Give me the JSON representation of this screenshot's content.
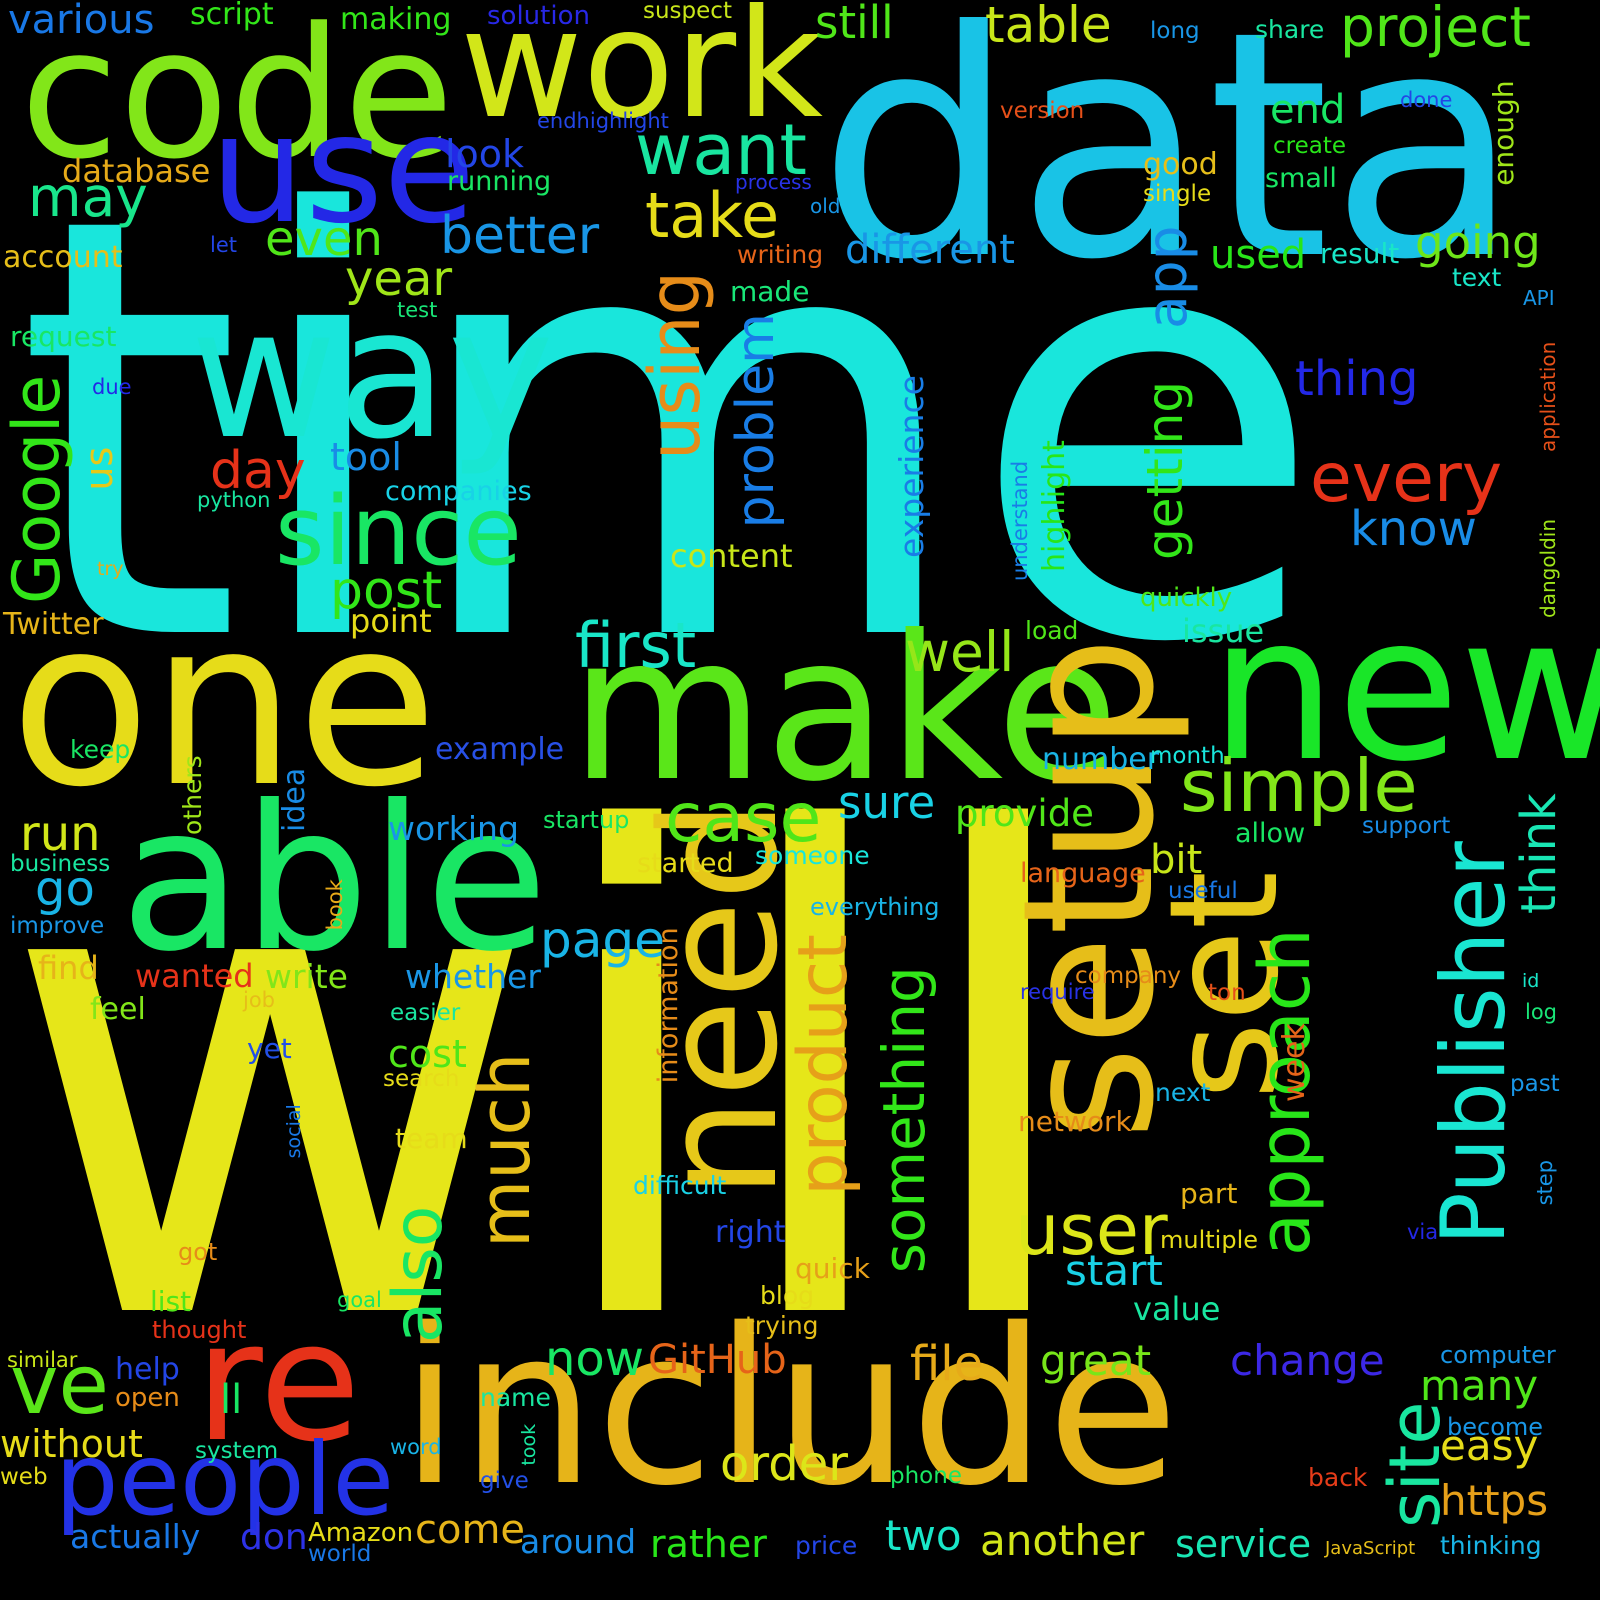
{
  "cloud": {
    "background": "#000000",
    "words": [
      {
        "text": "time",
        "color": "#19e6dc"
      },
      {
        "text": "will",
        "color": "#e6e619"
      },
      {
        "text": "data",
        "color": "#19c3e6"
      },
      {
        "text": "one",
        "color": "#e6dc19"
      },
      {
        "text": "code",
        "color": "#82e619"
      },
      {
        "text": "work",
        "color": "#d2e619"
      },
      {
        "text": "use",
        "color": "#2328e6"
      },
      {
        "text": "way",
        "color": "#19e6d2"
      },
      {
        "text": "make",
        "color": "#5ae619"
      },
      {
        "text": "new",
        "color": "#19e628"
      },
      {
        "text": "able",
        "color": "#19e664"
      },
      {
        "text": "include",
        "color": "#e6b419"
      },
      {
        "text": "need",
        "color": "#e6c819"
      },
      {
        "text": "set",
        "color": "#e6c819"
      },
      {
        "text": "setup",
        "color": "#e6be19"
      },
      {
        "text": "re",
        "color": "#e63219"
      },
      {
        "text": "people",
        "color": "#2332e6"
      },
      {
        "text": "since",
        "color": "#19e664"
      },
      {
        "text": "want",
        "color": "#19e6a0"
      },
      {
        "text": "take",
        "color": "#e6dc19"
      },
      {
        "text": "using",
        "color": "#e68c19"
      },
      {
        "text": "Publisher",
        "color": "#19e6d2"
      },
      {
        "text": "approach",
        "color": "#28e619"
      },
      {
        "text": "every",
        "color": "#e63219"
      },
      {
        "text": "much",
        "color": "#e6be19"
      },
      {
        "text": "product",
        "color": "#e6a019"
      },
      {
        "text": "something",
        "color": "#32e619"
      },
      {
        "text": "also",
        "color": "#19e664"
      },
      {
        "text": "user",
        "color": "#dce619"
      },
      {
        "text": "ve",
        "color": "#5ae619"
      },
      {
        "text": "site",
        "color": "#19e6a0"
      },
      {
        "text": "simple",
        "color": "#82e619"
      },
      {
        "text": "case",
        "color": "#50e619"
      },
      {
        "text": "first",
        "color": "#19e6c8"
      },
      {
        "text": "well",
        "color": "#96e619"
      },
      {
        "text": "problem",
        "color": "#197de6"
      },
      {
        "text": "app",
        "color": "#198ce6"
      },
      {
        "text": "getting",
        "color": "#32e619"
      },
      {
        "text": "thing",
        "color": "#2328e6"
      },
      {
        "text": "know",
        "color": "#198ce6"
      },
      {
        "text": "better",
        "color": "#1996e6"
      },
      {
        "text": "different",
        "color": "#1996e6"
      },
      {
        "text": "going",
        "color": "#6ee619"
      },
      {
        "text": "table",
        "color": "#c8e619"
      },
      {
        "text": "project",
        "color": "#50e619"
      },
      {
        "text": "still",
        "color": "#50e619"
      },
      {
        "text": "various",
        "color": "#1978e6"
      },
      {
        "text": "may",
        "color": "#19e68c"
      },
      {
        "text": "even",
        "color": "#50e619"
      },
      {
        "text": "year",
        "color": "#a0e619"
      },
      {
        "text": "Google",
        "color": "#32e619"
      },
      {
        "text": "day",
        "color": "#e63219"
      },
      {
        "text": "post",
        "color": "#32e619"
      },
      {
        "text": "tool",
        "color": "#198ce6"
      },
      {
        "text": "run",
        "color": "#d2e619"
      },
      {
        "text": "go",
        "color": "#19b4e6"
      },
      {
        "text": "page",
        "color": "#19b4e6"
      },
      {
        "text": "sure",
        "color": "#19d2e6"
      },
      {
        "text": "provide",
        "color": "#50e619"
      },
      {
        "text": "think",
        "color": "#19e6b4"
      },
      {
        "text": "bit",
        "color": "#c8e619"
      },
      {
        "text": "start",
        "color": "#19d2e6"
      },
      {
        "text": "order",
        "color": "#dce619"
      },
      {
        "text": "now",
        "color": "#19e664"
      },
      {
        "text": "GitHub",
        "color": "#e66419"
      },
      {
        "text": "file",
        "color": "#e6aa19"
      },
      {
        "text": "great",
        "color": "#78e619"
      },
      {
        "text": "change",
        "color": "#3c28e6"
      },
      {
        "text": "many",
        "color": "#50e619"
      },
      {
        "text": "easy",
        "color": "#e6dc19"
      },
      {
        "text": "https",
        "color": "#e6a019"
      },
      {
        "text": "two",
        "color": "#19e6c8"
      },
      {
        "text": "another",
        "color": "#d2e619"
      },
      {
        "text": "service",
        "color": "#19e6b4"
      },
      {
        "text": "come",
        "color": "#e6b419"
      },
      {
        "text": "rather",
        "color": "#28e619"
      },
      {
        "text": "around",
        "color": "#198ce6"
      },
      {
        "text": "don",
        "color": "#2d32e6"
      },
      {
        "text": "without",
        "color": "#e6dc19"
      },
      {
        "text": "ll",
        "color": "#19e664"
      },
      {
        "text": "actually",
        "color": "#1978e6"
      },
      {
        "text": "us",
        "color": "#e6c819"
      },
      {
        "text": "end",
        "color": "#19e664"
      },
      {
        "text": "used",
        "color": "#28e619"
      },
      {
        "text": "look",
        "color": "#2346e6"
      },
      {
        "text": "write",
        "color": "#82e619"
      },
      {
        "text": "wanted",
        "color": "#e63219"
      },
      {
        "text": "whether",
        "color": "#1996e6"
      },
      {
        "text": "working",
        "color": "#1996e6"
      },
      {
        "text": "cost",
        "color": "#50e619"
      },
      {
        "text": "experience",
        "color": "#197de6"
      },
      {
        "text": "highlight",
        "color": "#28e619"
      },
      {
        "text": "companies",
        "color": "#19d2e6"
      },
      {
        "text": "content",
        "color": "#c8e619"
      },
      {
        "text": "point",
        "color": "#e6dc19"
      },
      {
        "text": "issue",
        "color": "#19e6a0"
      },
      {
        "text": "quickly",
        "color": "#50e619"
      },
      {
        "text": "load",
        "color": "#50e619"
      },
      {
        "text": "example",
        "color": "#2850e6"
      },
      {
        "text": "number",
        "color": "#19b4e6"
      },
      {
        "text": "month",
        "color": "#19e6dc"
      },
      {
        "text": "language",
        "color": "#e66419"
      },
      {
        "text": "useful",
        "color": "#1978e6"
      },
      {
        "text": "support",
        "color": "#198ce6"
      },
      {
        "text": "allow",
        "color": "#19e664"
      },
      {
        "text": "someone",
        "color": "#19e6dc"
      },
      {
        "text": "started",
        "color": "#e6dc19"
      },
      {
        "text": "everything",
        "color": "#19b4e6"
      },
      {
        "text": "week",
        "color": "#e66419"
      },
      {
        "text": "company",
        "color": "#e68c19"
      },
      {
        "text": "require",
        "color": "#2832e6"
      },
      {
        "text": "ton",
        "color": "#e65019"
      },
      {
        "text": "next",
        "color": "#19b4e6"
      },
      {
        "text": "network",
        "color": "#e68c19"
      },
      {
        "text": "part",
        "color": "#e6b419"
      },
      {
        "text": "multiple",
        "color": "#e6dc19"
      },
      {
        "text": "right",
        "color": "#2346e6"
      },
      {
        "text": "quick",
        "color": "#e6a019"
      },
      {
        "text": "blog",
        "color": "#e6dc19"
      },
      {
        "text": "trying",
        "color": "#e6be19"
      },
      {
        "text": "value",
        "color": "#19e6a0"
      },
      {
        "text": "difficult",
        "color": "#19d2e6"
      },
      {
        "text": "team",
        "color": "#e6dc19"
      },
      {
        "text": "search",
        "color": "#e6dc19"
      },
      {
        "text": "information",
        "color": "#e68c19"
      },
      {
        "text": "social",
        "color": "#1978e6"
      },
      {
        "text": "easier",
        "color": "#19e6a0"
      },
      {
        "text": "yet",
        "color": "#2350e6"
      },
      {
        "text": "job",
        "color": "#e6be19"
      },
      {
        "text": "feel",
        "color": "#82e619"
      },
      {
        "text": "find",
        "color": "#e6b419"
      },
      {
        "text": "book",
        "color": "#e6aa19"
      },
      {
        "text": "idea",
        "color": "#198ce6"
      },
      {
        "text": "others",
        "color": "#a0e619"
      },
      {
        "text": "keep",
        "color": "#19e664"
      },
      {
        "text": "business",
        "color": "#19e6a0"
      },
      {
        "text": "improve",
        "color": "#1996e6"
      },
      {
        "text": "Twitter",
        "color": "#e6b419"
      },
      {
        "text": "try",
        "color": "#e6aa19"
      },
      {
        "text": "python",
        "color": "#19e6a0"
      },
      {
        "text": "due",
        "color": "#2328e6"
      },
      {
        "text": "request",
        "color": "#19e664"
      },
      {
        "text": "account",
        "color": "#e6be19"
      },
      {
        "text": "test",
        "color": "#19e678"
      },
      {
        "text": "let",
        "color": "#2346e6"
      },
      {
        "text": "database",
        "color": "#e6aa19"
      },
      {
        "text": "running",
        "color": "#19e664"
      },
      {
        "text": "making",
        "color": "#32e619"
      },
      {
        "text": "script",
        "color": "#32e619"
      },
      {
        "text": "solution",
        "color": "#2828e6"
      },
      {
        "text": "suspect",
        "color": "#c8e619"
      },
      {
        "text": "endhighlight",
        "color": "#2346e6"
      },
      {
        "text": "process",
        "color": "#2832e6"
      },
      {
        "text": "old",
        "color": "#1996e6"
      },
      {
        "text": "writing",
        "color": "#e66419"
      },
      {
        "text": "made",
        "color": "#19e678"
      },
      {
        "text": "version",
        "color": "#e65019"
      },
      {
        "text": "long",
        "color": "#1996e6"
      },
      {
        "text": "share",
        "color": "#19e6a0"
      },
      {
        "text": "done",
        "color": "#2346e6"
      },
      {
        "text": "create",
        "color": "#28e619"
      },
      {
        "text": "small",
        "color": "#19e664"
      },
      {
        "text": "good",
        "color": "#e6be19"
      },
      {
        "text": "single",
        "color": "#e6dc19"
      },
      {
        "text": "enough",
        "color": "#a0e619"
      },
      {
        "text": "result",
        "color": "#19e6c8"
      },
      {
        "text": "text",
        "color": "#19e6c8"
      },
      {
        "text": "API",
        "color": "#1996e6"
      },
      {
        "text": "application",
        "color": "#e65019"
      },
      {
        "text": "dangoldin",
        "color": "#a0e619"
      },
      {
        "text": "understand",
        "color": "#197de6"
      },
      {
        "text": "id",
        "color": "#19e6c8"
      },
      {
        "text": "log",
        "color": "#19e678"
      },
      {
        "text": "past",
        "color": "#1996e6"
      },
      {
        "text": "step",
        "color": "#1996e6"
      },
      {
        "text": "via",
        "color": "#2328e6"
      },
      {
        "text": "computer",
        "color": "#1996e6"
      },
      {
        "text": "become",
        "color": "#1996e6"
      },
      {
        "text": "back",
        "color": "#e63c19"
      },
      {
        "text": "thinking",
        "color": "#19b4e6"
      },
      {
        "text": "JavaScript",
        "color": "#e6be19"
      },
      {
        "text": "price",
        "color": "#2346e6"
      },
      {
        "text": "world",
        "color": "#1978e6"
      },
      {
        "text": "Amazon",
        "color": "#e6dc19"
      },
      {
        "text": "phone",
        "color": "#19e664"
      },
      {
        "text": "give",
        "color": "#2350e6"
      },
      {
        "text": "took",
        "color": "#19e6a0"
      },
      {
        "text": "word",
        "color": "#19b4e6"
      },
      {
        "text": "name",
        "color": "#19e6a0"
      },
      {
        "text": "system",
        "color": "#19e6a0"
      },
      {
        "text": "open",
        "color": "#e68c19"
      },
      {
        "text": "help",
        "color": "#2346e6"
      },
      {
        "text": "similar",
        "color": "#c8e619"
      },
      {
        "text": "web",
        "color": "#e6dc19"
      },
      {
        "text": "list",
        "color": "#50e619"
      },
      {
        "text": "thought",
        "color": "#e63219"
      },
      {
        "text": "goal",
        "color": "#19e664"
      },
      {
        "text": "got",
        "color": "#e68c19"
      },
      {
        "text": "startup",
        "color": "#19e664"
      }
    ]
  }
}
